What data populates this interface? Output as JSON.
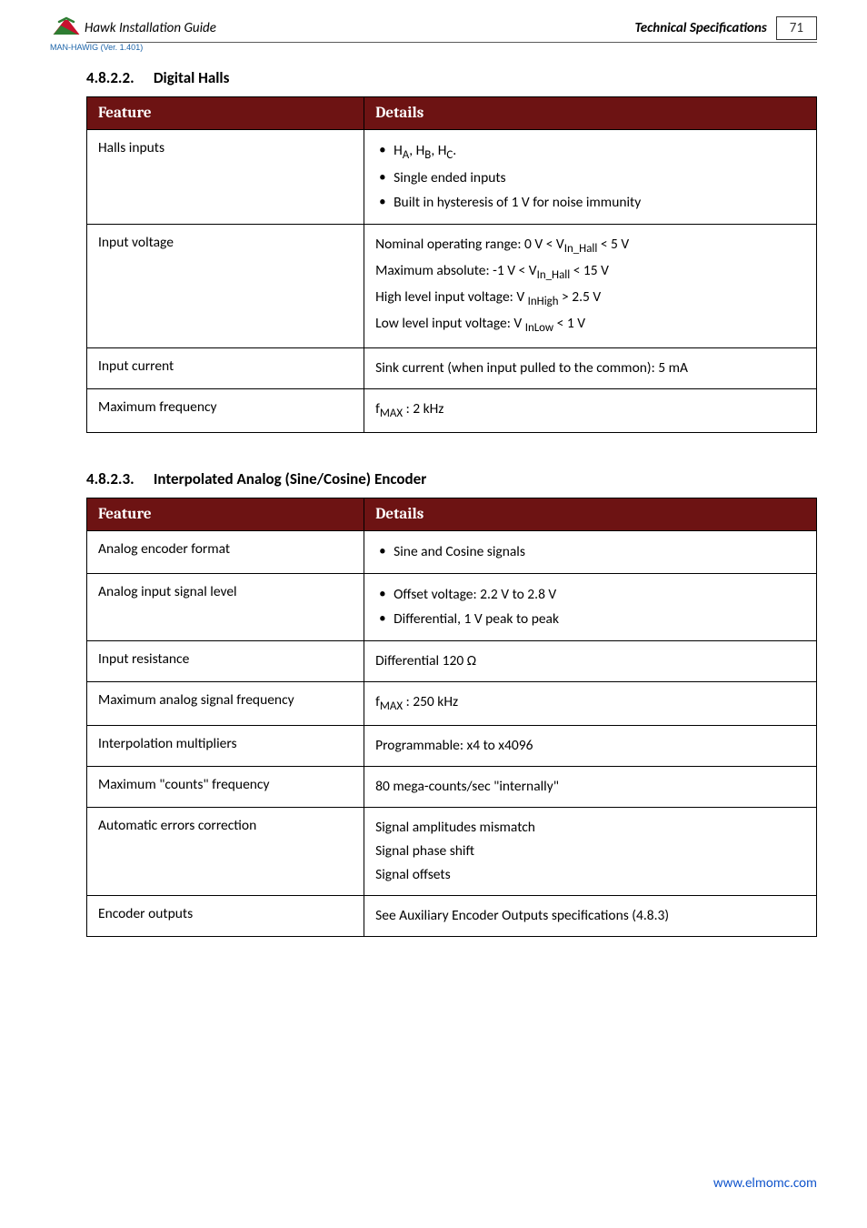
{
  "header": {
    "doc_title": "Hawk Installation Guide",
    "spec_title": "Technical Specifications",
    "page_number": "71",
    "version_line": "MAN-HAWIG (Ver. 1.401)"
  },
  "section1": {
    "number": "4.8.2.2.",
    "title": "Digital Halls",
    "col1": "Feature",
    "col2": "Details",
    "rows": [
      {
        "feature": "Halls inputs",
        "bullets": [
          "H<sub>A</sub>, H<sub>B</sub>, H<sub>C</sub>.",
          "Single ended inputs",
          "Built in hysteresis of 1 V for noise immunity"
        ]
      },
      {
        "feature": "Input voltage",
        "lines": [
          "Nominal operating range: 0 V < V<sub>In_Hall</sub> < 5 V",
          "Maximum absolute: -1 V < V<sub>In_Hall</sub> < 15 V",
          "High level input voltage: V <sub>InHigh</sub> > 2.5 V",
          "Low level input voltage: V <sub>InLow</sub> < 1 V"
        ]
      },
      {
        "feature": "Input current",
        "lines": [
          "Sink current (when input pulled to the common): 5 mA"
        ]
      },
      {
        "feature": "Maximum frequency",
        "lines": [
          "f<sub>MAX</sub> : 2 kHz"
        ]
      }
    ]
  },
  "section2": {
    "number": "4.8.2.3.",
    "title": "Interpolated Analog (Sine/Cosine) Encoder",
    "col1": "Feature",
    "col2": "Details",
    "rows": [
      {
        "feature": "Analog encoder format",
        "bullets": [
          "Sine and Cosine signals"
        ]
      },
      {
        "feature": "Analog input signal level",
        "bullets": [
          "Offset voltage: 2.2 V to 2.8 V",
          "Differential, 1 V peak to peak"
        ]
      },
      {
        "feature": "Input resistance",
        "lines": [
          "Differential 120 Ω"
        ]
      },
      {
        "feature": "Maximum analog signal frequency",
        "lines": [
          "f<sub>MAX</sub> : 250 kHz"
        ]
      },
      {
        "feature": "Interpolation multipliers",
        "lines": [
          "Programmable: x4 to x4096"
        ]
      },
      {
        "feature": "Maximum \"counts\" frequency",
        "lines": [
          "80 mega-counts/sec \"internally\""
        ]
      },
      {
        "feature": "Automatic errors correction",
        "lines": [
          "Signal amplitudes mismatch",
          "Signal  phase shift",
          "Signal offsets"
        ]
      },
      {
        "feature": "Encoder outputs",
        "lines": [
          "See Auxiliary Encoder Outputs specifications (4.8.3)"
        ]
      }
    ]
  },
  "footer": {
    "link_text": "www.elmomc.com"
  }
}
